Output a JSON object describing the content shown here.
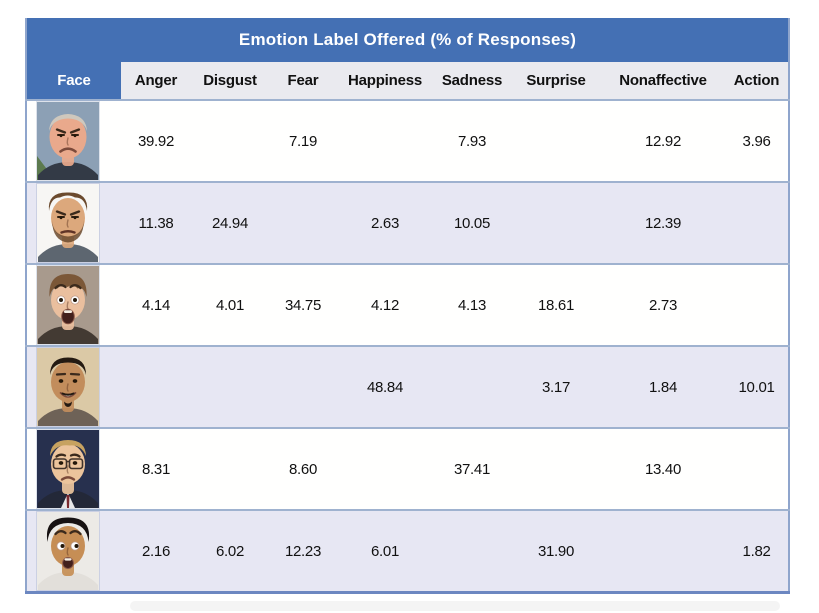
{
  "chart_data": {
    "type": "table",
    "title": "Emotion Label Offered (% of Responses)",
    "row_header": "Face",
    "columns": [
      "Anger",
      "Disgust",
      "Fear",
      "Happiness",
      "Sadness",
      "Surprise",
      "Nonaffective",
      "Action"
    ],
    "rows": [
      {
        "face": {
          "id": "angry-man",
          "desc": "middle-aged balding man frowning angrily, blue-gray outdoor background",
          "bg": "#8ca0b5",
          "bg2": "#5c7a4e",
          "skin": "#e9a98c",
          "hair": "#cfc8bd",
          "shirt": "#333a46",
          "hair_style": "bald",
          "brows": "angry",
          "eyes": "narrow",
          "mouth": "frown",
          "big_head": true
        },
        "values": [
          "39.92",
          "",
          "7.19",
          "",
          "7.93",
          "",
          "12.92",
          "3.96"
        ]
      },
      {
        "face": {
          "id": "scowling-bearded-man",
          "desc": "bearded man with messy brown hair scowling, white background",
          "bg": "#f7f6f4",
          "skin": "#dca87c",
          "hair": "#6b4a2e",
          "shirt": "#5d6670",
          "hair_style": "messy",
          "brows": "angry",
          "eyes": "narrow",
          "mouth": "scowl",
          "beard": true
        },
        "values": [
          "11.38",
          "24.94",
          "",
          "2.63",
          "10.05",
          "",
          "12.39",
          ""
        ]
      },
      {
        "face": {
          "id": "frightened-child",
          "desc": "child with brown bangs, wide eyes and open mouth in shock/fear",
          "bg": "#a89a8d",
          "skin": "#eabf9e",
          "hair": "#7b5737",
          "shirt": "#433a33",
          "hair_style": "bangs",
          "brows": "raised",
          "eyes": "wide",
          "mouth": "open"
        },
        "values": [
          "4.14",
          "4.01",
          "34.75",
          "4.12",
          "4.13",
          "18.61",
          "2.73",
          ""
        ]
      },
      {
        "face": {
          "id": "smiling-man",
          "desc": "smiling man with dark hair and goatee, tan background",
          "bg": "#dbc9a6",
          "skin": "#c28d5c",
          "hair": "#241a12",
          "shirt": "#6e6257",
          "hair_style": "short",
          "brows": "flat",
          "eyes": "normal",
          "mouth": "smile",
          "goatee": true
        },
        "values": [
          "",
          "",
          "",
          "48.84",
          "",
          "3.17",
          "1.84",
          "10.01"
        ]
      },
      {
        "face": {
          "id": "sad-man-glasses",
          "desc": "sad man with glasses and suit, dark navy background",
          "bg": "#27304e",
          "skin": "#ecc49c",
          "hair": "#c7a260",
          "shirt": "#232838",
          "hair_style": "side",
          "brows": "sad",
          "eyes": "normal",
          "mouth": "sad",
          "glasses": true,
          "white_collar": true
        },
        "values": [
          "8.31",
          "",
          "8.60",
          "",
          "37.41",
          "",
          "13.40",
          ""
        ]
      },
      {
        "face": {
          "id": "surprised-man",
          "desc": "young man with black hair, wide startled eyes and open mouth, light background",
          "bg": "#eceae6",
          "skin": "#c68e55",
          "hair": "#171212",
          "shirt": "#e2dfda",
          "hair_style": "afro",
          "brows": "raised",
          "eyes": "wide",
          "mouth": "open_small",
          "look": 1.5
        },
        "values": [
          "2.16",
          "6.02",
          "12.23",
          "6.01",
          "",
          "31.90",
          "",
          "1.82"
        ]
      }
    ]
  },
  "colors": {
    "banner": "#4470b4",
    "header_bg": "#eaeaef",
    "row_light": "#fffffe",
    "row_shaded": "#e7e7f3",
    "separator": "#9fb2cf",
    "outer_border": "#8fa5cc",
    "bottom_border": "#6c87c1",
    "title_text": "#ffffff",
    "cell_text": "#111111"
  }
}
